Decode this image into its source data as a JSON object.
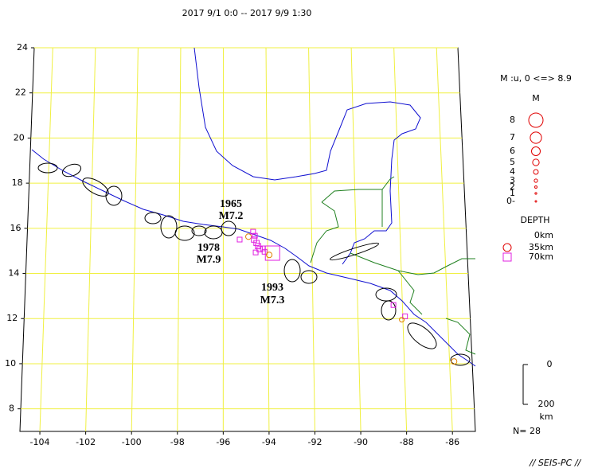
{
  "title": "2017 9/1 0:0 -- 2017 9/9 1:30",
  "map": {
    "lonlim": [
      -104.87,
      -85
    ],
    "latlim": [
      7,
      24
    ],
    "grid": true,
    "lat_ticks": [
      8,
      10,
      12,
      14,
      16,
      18,
      20,
      22,
      24
    ],
    "lon_ticks": [
      -104,
      -102,
      -100,
      -98,
      -96,
      -94,
      -92,
      -90,
      -88,
      -86
    ],
    "annotations": [
      "1965",
      "M7.2",
      "1978",
      "M7.9",
      "1993",
      "M7.3"
    ],
    "events": [
      {
        "lon": -94.86,
        "lat": 15.63,
        "depth": 20,
        "mag": 4.5
      },
      {
        "lon": -94.65,
        "lat": 15.85,
        "depth": 50,
        "mag": 4
      },
      {
        "lon": -95.26,
        "lat": 15.5,
        "depth": 50,
        "mag": 4
      },
      {
        "lon": -94.61,
        "lat": 15.5,
        "depth": 50,
        "mag": 4.3
      },
      {
        "lon": -94.5,
        "lat": 15.35,
        "depth": 50,
        "mag": 4.3
      },
      {
        "lon": -94.43,
        "lat": 15.21,
        "depth": 50,
        "mag": 4.3
      },
      {
        "lon": -94.54,
        "lat": 14.93,
        "depth": 50,
        "mag": 4
      },
      {
        "lon": -94.36,
        "lat": 15.07,
        "depth": 50,
        "mag": 4.3
      },
      {
        "lon": -94.22,
        "lat": 15.11,
        "depth": 50,
        "mag": 4
      },
      {
        "lon": -94.14,
        "lat": 14.96,
        "depth": 50,
        "mag": 4
      },
      {
        "lon": -94.57,
        "lat": 15.67,
        "depth": 50,
        "mag": 4
      },
      {
        "lon": -93.93,
        "lat": 14.82,
        "depth": 20,
        "mag": 4.5
      },
      {
        "lon": -93.78,
        "lat": 14.9,
        "depth": 60,
        "mag": 8
      },
      {
        "lon": -88.4,
        "lat": 12.6,
        "depth": 50,
        "mag": 4
      },
      {
        "lon": -87.9,
        "lat": 12.1,
        "depth": 50,
        "mag": 4
      },
      {
        "lon": -88.05,
        "lat": 11.95,
        "depth": 20,
        "mag": 4
      },
      {
        "lon": -85.8,
        "lat": 10.1,
        "depth": 20,
        "mag": 4.5
      }
    ]
  },
  "legend": {
    "title": "M :u, 0 <=> 8.9",
    "label": "M",
    "levels": [
      8,
      7,
      6,
      5,
      4,
      3,
      2,
      1,
      {
        "value": 0,
        "label": "0-"
      }
    ],
    "depth_title": "DEPTH",
    "depths": [
      {
        "value": 0,
        "label": "0km"
      },
      {
        "value": 35,
        "label": "35km"
      },
      {
        "value": 70,
        "label": "70km"
      }
    ]
  },
  "scale": {
    "labels": [
      0,
      200
    ],
    "unit": "km"
  },
  "count": "N= 28",
  "footer": "// SEIS-PC //"
}
